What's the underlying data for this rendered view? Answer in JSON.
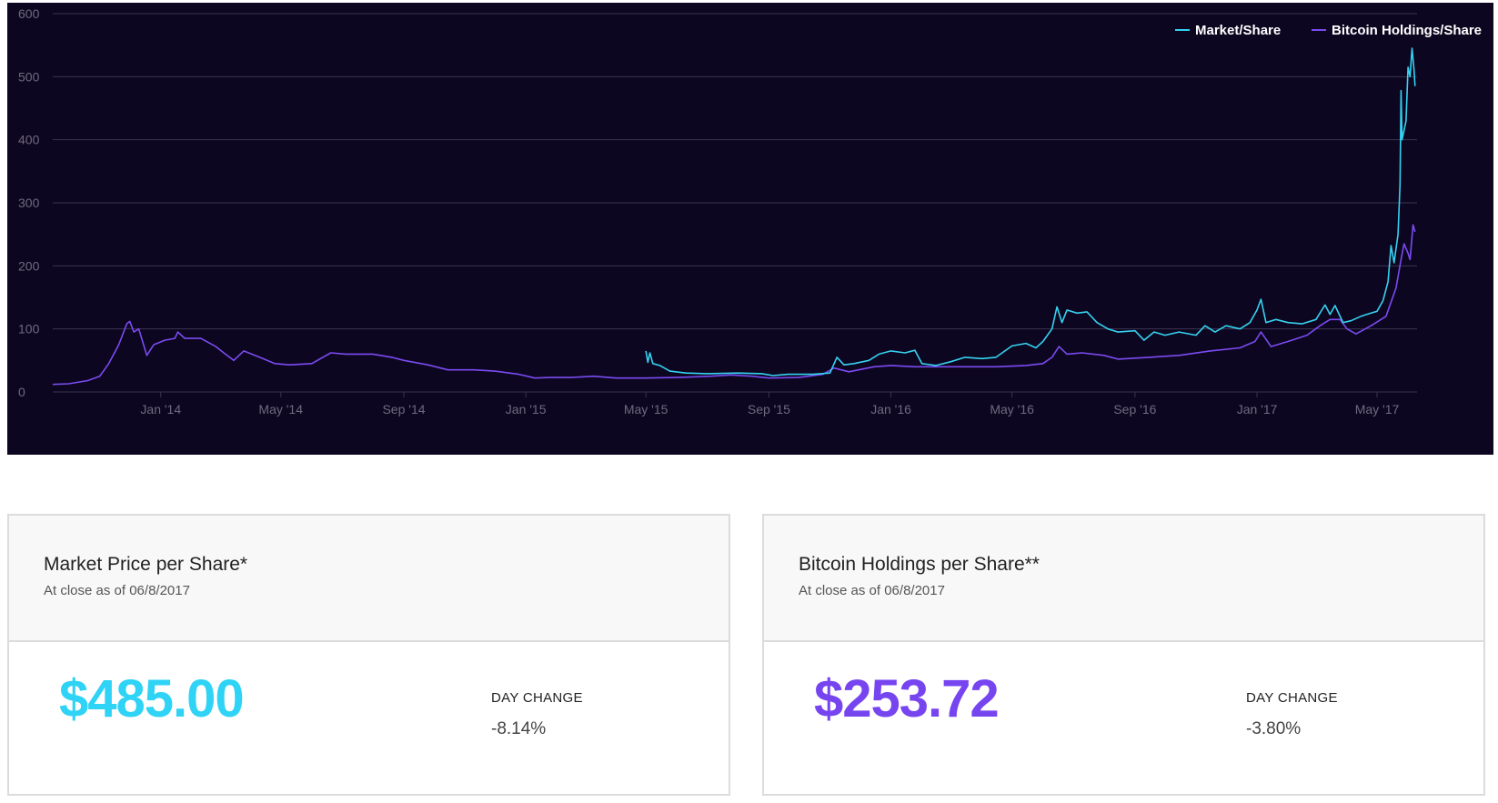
{
  "colors": {
    "background": "#0d0620",
    "market": "#35d2f0",
    "holdings": "#7a4bf2",
    "grid": "#3a3450"
  },
  "chart_data": {
    "type": "line",
    "title": "",
    "xlabel": "",
    "ylabel": "",
    "ylim": [
      0,
      600
    ],
    "xlim": [
      "2013-09-15",
      "2017-06-10"
    ],
    "grid": true,
    "legend_position": "top-right",
    "y_ticks": [
      "0",
      "100",
      "200",
      "300",
      "400",
      "500",
      "600"
    ],
    "x_ticks": [
      {
        "label": "Jan '14",
        "date": "2014-01-01"
      },
      {
        "label": "May '14",
        "date": "2014-05-01"
      },
      {
        "label": "Sep '14",
        "date": "2014-09-01"
      },
      {
        "label": "Jan '15",
        "date": "2015-01-01"
      },
      {
        "label": "May '15",
        "date": "2015-05-01"
      },
      {
        "label": "Sep '15",
        "date": "2015-09-01"
      },
      {
        "label": "Jan '16",
        "date": "2016-01-01"
      },
      {
        "label": "May '16",
        "date": "2016-05-01"
      },
      {
        "label": "Sep '16",
        "date": "2016-09-01"
      },
      {
        "label": "Jan '17",
        "date": "2017-01-01"
      },
      {
        "label": "May '17",
        "date": "2017-05-01"
      }
    ],
    "series": [
      {
        "name": "Market/Share",
        "points": [
          [
            "2015-05-01",
            65
          ],
          [
            "2015-05-03",
            47
          ],
          [
            "2015-05-05",
            62
          ],
          [
            "2015-05-08",
            45
          ],
          [
            "2015-05-15",
            42
          ],
          [
            "2015-05-25",
            33
          ],
          [
            "2015-06-10",
            30
          ],
          [
            "2015-07-01",
            29
          ],
          [
            "2015-08-01",
            30
          ],
          [
            "2015-08-25",
            29
          ],
          [
            "2015-09-05",
            26
          ],
          [
            "2015-09-20",
            28
          ],
          [
            "2015-10-15",
            28
          ],
          [
            "2015-11-01",
            30
          ],
          [
            "2015-11-08",
            55
          ],
          [
            "2015-11-15",
            43
          ],
          [
            "2015-11-25",
            45
          ],
          [
            "2015-12-10",
            50
          ],
          [
            "2015-12-20",
            60
          ],
          [
            "2016-01-01",
            65
          ],
          [
            "2016-01-15",
            62
          ],
          [
            "2016-01-25",
            66
          ],
          [
            "2016-02-01",
            45
          ],
          [
            "2016-02-15",
            42
          ],
          [
            "2016-03-01",
            48
          ],
          [
            "2016-03-15",
            55
          ],
          [
            "2016-04-01",
            53
          ],
          [
            "2016-04-15",
            55
          ],
          [
            "2016-05-01",
            73
          ],
          [
            "2016-05-15",
            77
          ],
          [
            "2016-05-25",
            70
          ],
          [
            "2016-06-01",
            80
          ],
          [
            "2016-06-10",
            100
          ],
          [
            "2016-06-15",
            135
          ],
          [
            "2016-06-20",
            110
          ],
          [
            "2016-06-25",
            130
          ],
          [
            "2016-07-05",
            125
          ],
          [
            "2016-07-15",
            127
          ],
          [
            "2016-07-25",
            110
          ],
          [
            "2016-08-05",
            100
          ],
          [
            "2016-08-15",
            95
          ],
          [
            "2016-09-01",
            97
          ],
          [
            "2016-09-10",
            82
          ],
          [
            "2016-09-20",
            95
          ],
          [
            "2016-10-01",
            90
          ],
          [
            "2016-10-15",
            95
          ],
          [
            "2016-11-01",
            90
          ],
          [
            "2016-11-10",
            105
          ],
          [
            "2016-11-20",
            95
          ],
          [
            "2016-12-01",
            105
          ],
          [
            "2016-12-15",
            100
          ],
          [
            "2016-12-25",
            110
          ],
          [
            "2017-01-01",
            130
          ],
          [
            "2017-01-05",
            147
          ],
          [
            "2017-01-10",
            110
          ],
          [
            "2017-01-20",
            115
          ],
          [
            "2017-02-01",
            110
          ],
          [
            "2017-02-15",
            108
          ],
          [
            "2017-03-01",
            115
          ],
          [
            "2017-03-10",
            138
          ],
          [
            "2017-03-15",
            123
          ],
          [
            "2017-03-20",
            137
          ],
          [
            "2017-03-28",
            110
          ],
          [
            "2017-04-05",
            113
          ],
          [
            "2017-04-15",
            120
          ],
          [
            "2017-04-25",
            125
          ],
          [
            "2017-05-01",
            128
          ],
          [
            "2017-05-07",
            145
          ],
          [
            "2017-05-12",
            175
          ],
          [
            "2017-05-15",
            232
          ],
          [
            "2017-05-18",
            205
          ],
          [
            "2017-05-22",
            250
          ],
          [
            "2017-05-24",
            330
          ],
          [
            "2017-05-25",
            478
          ],
          [
            "2017-05-26",
            400
          ],
          [
            "2017-05-28",
            415
          ],
          [
            "2017-05-30",
            430
          ],
          [
            "2017-06-01",
            515
          ],
          [
            "2017-06-03",
            500
          ],
          [
            "2017-06-05",
            545
          ],
          [
            "2017-06-07",
            510
          ],
          [
            "2017-06-08",
            485
          ]
        ]
      },
      {
        "name": "Bitcoin Holdings/Share",
        "points": [
          [
            "2013-09-15",
            12
          ],
          [
            "2013-10-01",
            13
          ],
          [
            "2013-10-20",
            18
          ],
          [
            "2013-11-01",
            25
          ],
          [
            "2013-11-10",
            45
          ],
          [
            "2013-11-20",
            75
          ],
          [
            "2013-11-28",
            108
          ],
          [
            "2013-12-01",
            112
          ],
          [
            "2013-12-05",
            95
          ],
          [
            "2013-12-10",
            100
          ],
          [
            "2013-12-18",
            58
          ],
          [
            "2013-12-25",
            75
          ],
          [
            "2014-01-05",
            82
          ],
          [
            "2014-01-15",
            85
          ],
          [
            "2014-01-18",
            95
          ],
          [
            "2014-01-25",
            85
          ],
          [
            "2014-02-10",
            85
          ],
          [
            "2014-02-25",
            72
          ],
          [
            "2014-03-05",
            62
          ],
          [
            "2014-03-15",
            50
          ],
          [
            "2014-03-25",
            65
          ],
          [
            "2014-04-10",
            55
          ],
          [
            "2014-04-25",
            45
          ],
          [
            "2014-05-10",
            43
          ],
          [
            "2014-06-01",
            45
          ],
          [
            "2014-06-20",
            62
          ],
          [
            "2014-07-05",
            60
          ],
          [
            "2014-08-01",
            60
          ],
          [
            "2014-08-20",
            55
          ],
          [
            "2014-09-01",
            50
          ],
          [
            "2014-09-25",
            43
          ],
          [
            "2014-10-15",
            35
          ],
          [
            "2014-11-10",
            35
          ],
          [
            "2014-12-01",
            33
          ],
          [
            "2014-12-25",
            28
          ],
          [
            "2015-01-10",
            22
          ],
          [
            "2015-01-25",
            23
          ],
          [
            "2015-02-15",
            23
          ],
          [
            "2015-03-10",
            25
          ],
          [
            "2015-04-01",
            22
          ],
          [
            "2015-05-01",
            22
          ],
          [
            "2015-06-01",
            23
          ],
          [
            "2015-07-05",
            25
          ],
          [
            "2015-07-25",
            27
          ],
          [
            "2015-08-15",
            25
          ],
          [
            "2015-09-01",
            22
          ],
          [
            "2015-10-01",
            23
          ],
          [
            "2015-10-25",
            28
          ],
          [
            "2015-11-05",
            38
          ],
          [
            "2015-11-20",
            32
          ],
          [
            "2015-12-15",
            40
          ],
          [
            "2016-01-01",
            42
          ],
          [
            "2016-01-25",
            40
          ],
          [
            "2016-02-15",
            40
          ],
          [
            "2016-03-15",
            40
          ],
          [
            "2016-04-15",
            40
          ],
          [
            "2016-05-15",
            42
          ],
          [
            "2016-06-01",
            45
          ],
          [
            "2016-06-10",
            55
          ],
          [
            "2016-06-17",
            72
          ],
          [
            "2016-06-25",
            60
          ],
          [
            "2016-07-10",
            62
          ],
          [
            "2016-08-01",
            58
          ],
          [
            "2016-08-15",
            52
          ],
          [
            "2016-09-15",
            55
          ],
          [
            "2016-10-15",
            58
          ],
          [
            "2016-11-15",
            65
          ],
          [
            "2016-12-15",
            70
          ],
          [
            "2016-12-30",
            80
          ],
          [
            "2017-01-05",
            95
          ],
          [
            "2017-01-15",
            72
          ],
          [
            "2017-02-01",
            80
          ],
          [
            "2017-02-20",
            90
          ],
          [
            "2017-03-05",
            105
          ],
          [
            "2017-03-15",
            115
          ],
          [
            "2017-03-25",
            115
          ],
          [
            "2017-04-01",
            100
          ],
          [
            "2017-04-10",
            92
          ],
          [
            "2017-04-25",
            105
          ],
          [
            "2017-05-10",
            120
          ],
          [
            "2017-05-20",
            165
          ],
          [
            "2017-05-25",
            210
          ],
          [
            "2017-05-28",
            235
          ],
          [
            "2017-06-01",
            220
          ],
          [
            "2017-06-03",
            210
          ],
          [
            "2017-06-06",
            265
          ],
          [
            "2017-06-08",
            254
          ]
        ]
      }
    ]
  },
  "cards": [
    {
      "title": "Market Price per Share*",
      "subtitle": "At close as of 06/8/2017",
      "value": "$485.00",
      "change_label": "DAY CHANGE",
      "change_value": "-8.14%",
      "color": "#2ed3f6"
    },
    {
      "title": "Bitcoin Holdings per Share**",
      "subtitle": "At close as of 06/8/2017",
      "value": "$253.72",
      "change_label": "DAY CHANGE",
      "change_value": "-3.80%",
      "color": "#7645f0"
    }
  ]
}
